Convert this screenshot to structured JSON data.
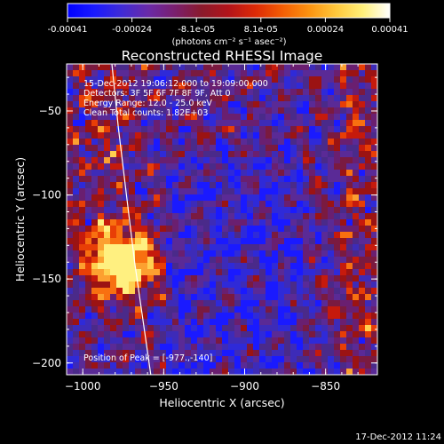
{
  "colorbar": {
    "ticks": [
      "-0.00041",
      "-0.00024",
      "-8.1e-05",
      "8.1e-05",
      "0.00024",
      "0.00041"
    ],
    "units_label": "(photons cm⁻² s⁻¹ asec⁻²)",
    "stops": [
      "#0000ff",
      "#1a1aff",
      "#3f2bd6",
      "#6a2aa8",
      "#7a1f6e",
      "#8a1a2c",
      "#b3141a",
      "#dd2a06",
      "#f45d04",
      "#fc9310",
      "#ffc83c",
      "#fff07a",
      "#ffffff"
    ]
  },
  "image": {
    "title": "Reconstructed RHESSI Image",
    "info_lines": [
      "15-Dec-2012 19:06:12.000 to 19:09:00.000",
      "Detectors: 3F 5F 6F 7F 8F 9F, Att 0",
      "Energy Range: 12.0 - 25.0 keV",
      "Clean     Total counts: 1.82E+03"
    ],
    "peak_label": "Position of Peak = [-977.,-140]",
    "peak": {
      "x": -977,
      "y": -140
    },
    "xlabel": "Heliocentric X (arcsec)",
    "ylabel": "Heliocentric Y (arcsec)",
    "xlim": [
      -1010,
      -818
    ],
    "ylim": [
      -207,
      -22
    ],
    "xticks": [
      -1000,
      -950,
      -900,
      -850
    ],
    "yticks": [
      -50,
      -100,
      -150,
      -200
    ],
    "xtick_labels": [
      "−1000",
      "−950",
      "−900",
      "−850"
    ],
    "ytick_labels": [
      "−50",
      "−100",
      "−150",
      "−200"
    ],
    "limb": [
      [
        -982,
        -22
      ],
      [
        -978,
        -60
      ],
      [
        -973,
        -100
      ],
      [
        -968,
        -140
      ],
      [
        -962,
        -180
      ],
      [
        -958,
        -207
      ]
    ]
  },
  "footer": {
    "timestamp": "17-Dec-2012 11:24"
  },
  "colors": {
    "background": "#000000",
    "text": "#ffffff",
    "base": "#4a2a8a"
  }
}
